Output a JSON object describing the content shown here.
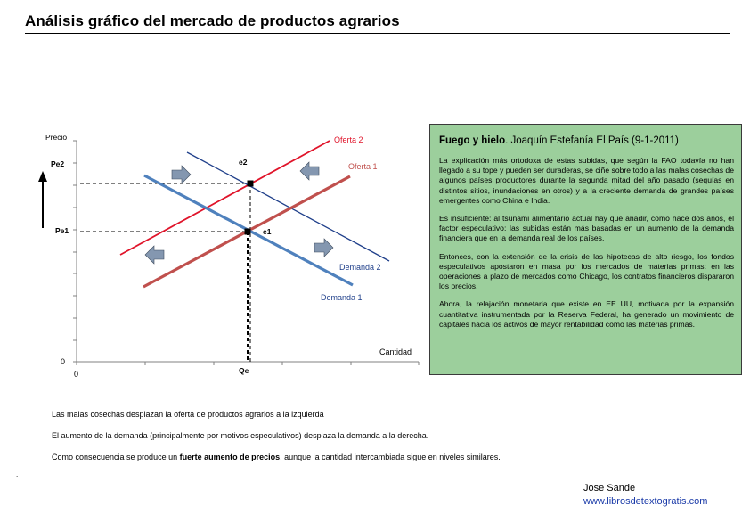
{
  "page": {
    "title": "Análisis gráfico del mercado de productos agrarios",
    "author": "Jose Sande",
    "website": "www.librosdetextogratis.com"
  },
  "chart": {
    "y_axis_label": "Precio",
    "x_axis_label": "Cantidad",
    "origin_x": "0",
    "origin_y": "0",
    "price_labels": {
      "pe1": "Pe1",
      "pe2": "Pe2"
    },
    "quantity_label": "Qe",
    "point_labels": {
      "e1": "e1",
      "e2": "e2"
    },
    "curve_labels": {
      "oferta1": "Oferta 1",
      "oferta2": "Oferta  2",
      "demanda1": "Demanda 1",
      "demanda2": "Demanda 2"
    },
    "colors": {
      "oferta1": "#c0504d",
      "oferta2": "#e0142a",
      "demanda1": "#4f81bd",
      "demanda2": "#1f3f8a",
      "shift_arrow": "#8497b0",
      "axis": "#808080"
    }
  },
  "article": {
    "headline": "Fuego y hielo",
    "byline": ". Joaquín Estefanía El  País  (9-1-2011)",
    "paragraphs": [
      "La explicación más ortodoxa de estas subidas, que según la FAO todavía no han llegado a su tope y pueden ser duraderas, se ciñe sobre todo a las malas cosechas de algunos países productores durante la segunda mitad del año pasado (sequías en distintos sitios, inundaciones en otros) y a la creciente demanda de grandes países emergentes como China e India.",
      "Es insuficiente: al tsunami alimentario actual hay que añadir, como hace dos años, el factor especulativo: las subidas están más basadas en un aumento de la demanda financiera que en la demanda real de los países.",
      "Entonces, con la extensión de la crisis de las hipotecas de alto riesgo, los fondos especulativos apostaron en masa por los mercados de materias primas: en las operaciones a plazo de mercados como Chicago, los contratos financieros dispararon los precios.",
      "Ahora, la relajación monetaria que existe en EE UU, motivada por la expansión cuantitativa instrumentada por la Reserva Federal, ha generado un movimiento de capitales hacia los activos de mayor rentabilidad como las materias primas."
    ]
  },
  "notes": {
    "line1": "Las malas cosechas desplazan la oferta de productos agrarios a la izquierda",
    "line2": "El aumento de la demanda (principalmente por motivos especulativos) desplaza la demanda a la derecha.",
    "line3_pre": "Como consecuencia se produce un ",
    "line3_bold": "fuerte aumento de precios",
    "line3_post": ", aunque la cantidad intercambiada sigue en niveles similares.",
    "stray_mark": "."
  }
}
